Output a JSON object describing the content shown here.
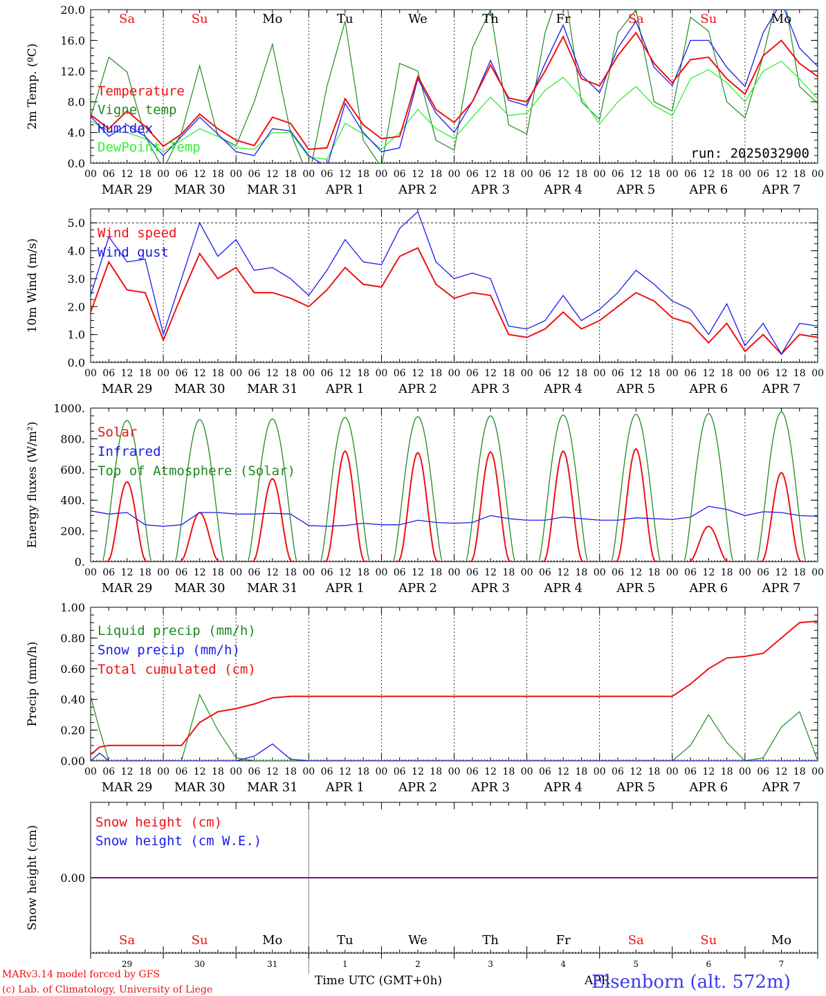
{
  "colors": {
    "red": "#ee1111",
    "green": "#1f8a1f",
    "blue": "#1a1aee",
    "lightgreen": "#33ee33",
    "black": "#000000"
  },
  "footer": {
    "model": "MARv3.14 model forced by GFS",
    "lab": "(c) Lab. of Climatology, University of Liege",
    "xlabel": "Time UTC (GMT+0h)",
    "station": "Elsenborn (alt. 572m)",
    "month_overlap": "APR"
  },
  "days": [
    {
      "label": "MAR 29",
      "weekday": "Sa",
      "weekend": true,
      "num": "29"
    },
    {
      "label": "MAR 30",
      "weekday": "Su",
      "weekend": true,
      "num": "30"
    },
    {
      "label": "MAR 31",
      "weekday": "Mo",
      "weekend": false,
      "num": "31"
    },
    {
      "label": "APR  1",
      "weekday": "Tu",
      "weekend": false,
      "num": "1"
    },
    {
      "label": "APR  2",
      "weekday": "We",
      "weekend": false,
      "num": "2"
    },
    {
      "label": "APR  3",
      "weekday": "Th",
      "weekend": false,
      "num": "3"
    },
    {
      "label": "APR  4",
      "weekday": "Fr",
      "weekend": false,
      "num": "4"
    },
    {
      "label": "APR  5",
      "weekday": "Sa",
      "weekend": true,
      "num": "5"
    },
    {
      "label": "APR  6",
      "weekday": "Su",
      "weekend": true,
      "num": "6"
    },
    {
      "label": "APR  7",
      "weekday": "Mo",
      "weekend": false,
      "num": "7"
    }
  ],
  "hour_ticks": [
    "00",
    "06",
    "12",
    "18"
  ],
  "chart_data": [
    {
      "type": "line",
      "id": "temp",
      "ylabel": "2m Temp. (ºC)",
      "ylim": [
        0,
        20
      ],
      "yticks": [
        "0.0",
        "4.0",
        "8.0",
        "12.0",
        "16.0",
        "20.0"
      ],
      "annotation": "run: 2025032900",
      "x_hours": [
        0,
        6,
        12,
        18,
        24,
        30,
        36,
        42,
        48,
        54,
        60,
        66,
        72,
        78,
        84,
        90,
        96,
        102,
        108,
        114,
        120,
        126,
        132,
        138,
        144,
        150,
        156,
        162,
        168,
        174,
        180,
        186,
        192,
        198,
        204,
        210,
        216,
        222,
        228,
        234,
        240
      ],
      "series": [
        {
          "name": "Temperature",
          "color": "red",
          "values": [
            6.3,
            4.5,
            6.8,
            4.8,
            2.2,
            3.8,
            6.4,
            4.5,
            3.0,
            2.3,
            6.0,
            5.2,
            1.8,
            2.0,
            8.4,
            5.0,
            3.2,
            3.5,
            11.3,
            7.0,
            5.3,
            8.0,
            12.8,
            8.5,
            8.0,
            12.0,
            16.5,
            11.0,
            10.1,
            14.0,
            17.0,
            13.0,
            10.5,
            13.5,
            13.8,
            11.0,
            9.0,
            14.0,
            16.0,
            13.0,
            11.3
          ]
        },
        {
          "name": "Vigne temp",
          "color": "green",
          "values": [
            6.0,
            13.8,
            11.9,
            3.5,
            -0.8,
            4.0,
            12.7,
            3.5,
            2.3,
            8.0,
            15.5,
            4.0,
            -2.0,
            10.0,
            18.5,
            3.0,
            -0.5,
            13.0,
            12.0,
            3.0,
            1.7,
            15.0,
            20.0,
            5.0,
            3.8,
            17.0,
            24.0,
            8.0,
            5.7,
            17.0,
            20.0,
            8.0,
            6.8,
            19.0,
            17.2,
            8.0,
            5.9,
            14.0,
            24.0,
            10.0,
            7.8
          ]
        },
        {
          "name": "Humidex",
          "color": "blue",
          "values": [
            6.1,
            3.5,
            5.0,
            3.5,
            1.0,
            3.5,
            6.0,
            3.8,
            1.5,
            1.0,
            4.5,
            4.2,
            1.0,
            -0.5,
            7.8,
            4.0,
            1.5,
            2.0,
            11.0,
            6.5,
            4.0,
            8.0,
            13.4,
            8.2,
            7.5,
            13.0,
            18.0,
            11.5,
            9.2,
            15.0,
            18.5,
            12.5,
            10.1,
            16.0,
            16.0,
            12.5,
            10.0,
            17.0,
            21.0,
            15.0,
            12.6
          ]
        },
        {
          "name": "DewPoint Temp",
          "color": "lightgreen",
          "values": [
            5.5,
            4.2,
            4.0,
            3.2,
            1.5,
            3.0,
            4.5,
            3.5,
            2.0,
            1.8,
            4.0,
            4.0,
            0.8,
            0.5,
            5.2,
            3.8,
            1.8,
            4.0,
            7.0,
            4.5,
            3.2,
            6.0,
            8.6,
            6.2,
            6.5,
            9.5,
            11.2,
            8.5,
            5.1,
            8.0,
            10.0,
            7.5,
            6.2,
            11.0,
            12.2,
            10.5,
            8.0,
            12.0,
            13.3,
            11.0,
            8.4
          ]
        }
      ]
    },
    {
      "type": "line",
      "id": "wind",
      "ylabel": "10m Wind (m/s)",
      "ylim": [
        0,
        5.5
      ],
      "yticks": [
        "0.0",
        "1.0",
        "2.0",
        "3.0",
        "4.0",
        "5.0"
      ],
      "x_hours": [
        0,
        6,
        12,
        18,
        24,
        30,
        36,
        42,
        48,
        54,
        60,
        66,
        72,
        78,
        84,
        90,
        96,
        102,
        108,
        114,
        120,
        126,
        132,
        138,
        144,
        150,
        156,
        162,
        168,
        174,
        180,
        186,
        192,
        198,
        204,
        210,
        216,
        222,
        228,
        234,
        240
      ],
      "series": [
        {
          "name": "Wind speed",
          "color": "red",
          "values": [
            1.8,
            3.6,
            2.6,
            2.5,
            0.8,
            2.4,
            3.9,
            3.0,
            3.4,
            2.5,
            2.5,
            2.3,
            2.0,
            2.6,
            3.4,
            2.8,
            2.7,
            3.8,
            4.1,
            2.8,
            2.3,
            2.5,
            2.4,
            1.0,
            0.9,
            1.2,
            1.8,
            1.2,
            1.5,
            2.0,
            2.5,
            2.2,
            1.6,
            1.4,
            0.7,
            1.4,
            0.4,
            1.0,
            0.3,
            1.0,
            0.9
          ]
        },
        {
          "name": "Wind gust",
          "color": "blue",
          "values": [
            2.4,
            4.5,
            3.6,
            3.7,
            1.0,
            3.0,
            5.0,
            3.8,
            4.4,
            3.3,
            3.4,
            3.0,
            2.4,
            3.3,
            4.4,
            3.6,
            3.5,
            4.8,
            5.4,
            3.6,
            3.0,
            3.2,
            3.0,
            1.3,
            1.2,
            1.5,
            2.4,
            1.5,
            1.9,
            2.5,
            3.3,
            2.8,
            2.2,
            1.9,
            1.0,
            2.1,
            0.6,
            1.4,
            0.3,
            1.4,
            1.3
          ]
        }
      ]
    },
    {
      "type": "line",
      "id": "energy",
      "ylabel": "Energy fluxes (W/m²)",
      "ylim": [
        0,
        1000
      ],
      "yticks": [
        "0.",
        "200.",
        "400.",
        "600.",
        "800.",
        "1000."
      ],
      "series": [
        {
          "name": "Solar",
          "color": "red",
          "peaks": [
            520,
            320,
            540,
            720,
            710,
            715,
            720,
            735,
            230,
            580
          ]
        },
        {
          "name": "Infrared",
          "color": "blue",
          "x_hours": [
            0,
            6,
            12,
            18,
            24,
            30,
            36,
            42,
            48,
            54,
            60,
            66,
            72,
            78,
            84,
            90,
            96,
            102,
            108,
            114,
            120,
            126,
            132,
            138,
            144,
            150,
            156,
            162,
            168,
            174,
            180,
            186,
            192,
            198,
            204,
            210,
            216,
            222,
            228,
            234,
            240
          ],
          "values": [
            330,
            310,
            320,
            240,
            230,
            240,
            320,
            320,
            310,
            310,
            315,
            310,
            235,
            230,
            235,
            250,
            240,
            240,
            270,
            255,
            250,
            255,
            300,
            280,
            270,
            270,
            290,
            280,
            270,
            270,
            285,
            280,
            275,
            290,
            360,
            340,
            300,
            325,
            320,
            300,
            295
          ]
        },
        {
          "name": "Top of Atmosphere (Solar)",
          "color": "green",
          "peaks": [
            920,
            925,
            930,
            940,
            945,
            950,
            955,
            960,
            965,
            975
          ]
        }
      ]
    },
    {
      "type": "line",
      "id": "precip",
      "ylabel": "Precip (mm/h)",
      "ylim": [
        0,
        1.0
      ],
      "yticks": [
        "0.00",
        "0.20",
        "0.40",
        "0.60",
        "0.80",
        "1.00"
      ],
      "x_hours": [
        0,
        3,
        6,
        12,
        18,
        24,
        30,
        36,
        42,
        48,
        54,
        60,
        66,
        72,
        78,
        84,
        90,
        96,
        102,
        108,
        114,
        120,
        126,
        132,
        138,
        144,
        150,
        156,
        162,
        168,
        174,
        180,
        186,
        192,
        198,
        204,
        210,
        216,
        222,
        228,
        234,
        240
      ],
      "series": [
        {
          "name": "Liquid precip (mm/h)",
          "color": "green",
          "values": [
            0.42,
            0.2,
            0.0,
            0.0,
            0.0,
            0.0,
            0.0,
            0.43,
            0.2,
            0.02,
            0.0,
            0.0,
            0.0,
            0.0,
            0.0,
            0.0,
            0.0,
            0.0,
            0.0,
            0.0,
            0.0,
            0.0,
            0.0,
            0.0,
            0.0,
            0.0,
            0.0,
            0.0,
            0.0,
            0.0,
            0.0,
            0.0,
            0.0,
            0.0,
            0.1,
            0.3,
            0.12,
            0.0,
            0.02,
            0.22,
            0.32,
            0.0
          ]
        },
        {
          "name": "Snow precip (mm/h)",
          "color": "blue",
          "values": [
            0.0,
            0.05,
            0.0,
            0.0,
            0.0,
            0.0,
            0.0,
            0.0,
            0.0,
            0.0,
            0.03,
            0.11,
            0.01,
            0.0,
            0.0,
            0.0,
            0.0,
            0.0,
            0.0,
            0.0,
            0.0,
            0.0,
            0.0,
            0.0,
            0.0,
            0.0,
            0.0,
            0.0,
            0.0,
            0.0,
            0.0,
            0.0,
            0.0,
            0.0,
            0.0,
            0.0,
            0.0,
            0.0,
            0.0,
            0.0,
            0.0,
            0.0
          ]
        },
        {
          "name": "Total cumulated (cm)",
          "color": "red",
          "values": [
            0.04,
            0.09,
            0.1,
            0.1,
            0.1,
            0.1,
            0.1,
            0.25,
            0.32,
            0.34,
            0.37,
            0.41,
            0.42,
            0.42,
            0.42,
            0.42,
            0.42,
            0.42,
            0.42,
            0.42,
            0.42,
            0.42,
            0.42,
            0.42,
            0.42,
            0.42,
            0.42,
            0.42,
            0.42,
            0.42,
            0.42,
            0.42,
            0.42,
            0.42,
            0.5,
            0.6,
            0.67,
            0.68,
            0.7,
            0.8,
            0.9,
            0.91
          ]
        }
      ]
    },
    {
      "type": "line",
      "id": "snow",
      "ylabel": "Snow height (cm)",
      "ylim": [
        -1,
        1
      ],
      "yticks": [
        "0.00"
      ],
      "series": [
        {
          "name": "Snow height (cm)",
          "color": "red",
          "values": [
            0,
            0
          ]
        },
        {
          "name": "Snow height (cm W.E.)",
          "color": "blue",
          "values": [
            0,
            0
          ]
        }
      ]
    }
  ]
}
